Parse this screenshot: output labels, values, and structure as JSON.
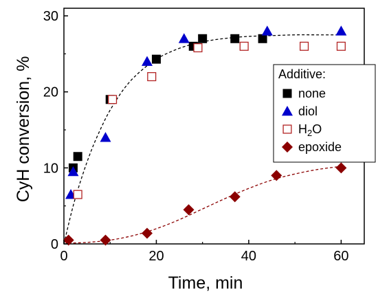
{
  "chart_data": {
    "type": "scatter",
    "xlabel": "Time, min",
    "ylabel": "CyH conversion, %",
    "xlim": [
      0,
      65
    ],
    "ylim": [
      0,
      31
    ],
    "x_ticks": [
      0,
      20,
      40,
      60
    ],
    "y_ticks": [
      0,
      10,
      20,
      30
    ],
    "grid": false,
    "legend": {
      "title": "Additive:",
      "placement": "right",
      "entries": [
        {
          "label": "none",
          "marker": "square-filled",
          "color": "#000000"
        },
        {
          "label": "diol",
          "marker": "triangle-filled",
          "color": "#0000cc"
        },
        {
          "label_main": "H",
          "label_sub": "2",
          "label_tail": "O",
          "marker": "square-open",
          "color": "#b22222"
        },
        {
          "label": "epoxide",
          "marker": "diamond-filled",
          "color": "#8b0000"
        }
      ]
    },
    "series": [
      {
        "key": "none",
        "marker": "square-filled",
        "color": "#000000",
        "x": [
          2,
          3,
          10,
          20,
          28,
          30,
          37,
          43
        ],
        "y": [
          10,
          11.5,
          19,
          24.3,
          26,
          27,
          27,
          27
        ]
      },
      {
        "key": "diol",
        "marker": "triangle-filled",
        "color": "#0000cc",
        "x": [
          1.5,
          2,
          9,
          18,
          26,
          44,
          60
        ],
        "y": [
          6.5,
          9.5,
          14,
          24,
          27,
          28,
          28
        ]
      },
      {
        "key": "h2o",
        "marker": "square-open",
        "color": "#b22222",
        "x": [
          3,
          10.5,
          19,
          29,
          39,
          52,
          60
        ],
        "y": [
          6.5,
          19,
          22,
          25.8,
          26,
          26,
          26
        ]
      },
      {
        "key": "epoxide",
        "marker": "diamond-filled",
        "color": "#8b0000",
        "x": [
          1,
          9,
          18,
          27,
          37,
          46,
          60
        ],
        "y": [
          0.5,
          0.5,
          1.4,
          4.5,
          6.2,
          9,
          10
        ]
      }
    ],
    "fits": [
      {
        "key": "none-fit",
        "color": "#000000",
        "style": "dashed",
        "x": [
          0,
          2,
          4,
          6,
          8,
          10,
          13,
          16,
          20,
          24,
          28,
          32,
          36,
          40,
          45,
          50,
          55,
          60
        ],
        "y": [
          0,
          5.0,
          9.0,
          12.4,
          15.2,
          17.6,
          20.4,
          22.4,
          24.3,
          25.5,
          26.3,
          26.8,
          27.1,
          27.3,
          27.4,
          27.5,
          27.5,
          27.5
        ]
      },
      {
        "key": "epoxide-fit",
        "color": "#8b0000",
        "style": "dashed",
        "x": [
          1,
          5,
          10,
          15,
          20,
          25,
          30,
          35,
          40,
          45,
          50,
          55,
          60
        ],
        "y": [
          0.1,
          0.2,
          0.5,
          1.1,
          2.0,
          3.2,
          4.6,
          6.0,
          7.3,
          8.4,
          9.2,
          9.8,
          10.2
        ]
      }
    ]
  }
}
